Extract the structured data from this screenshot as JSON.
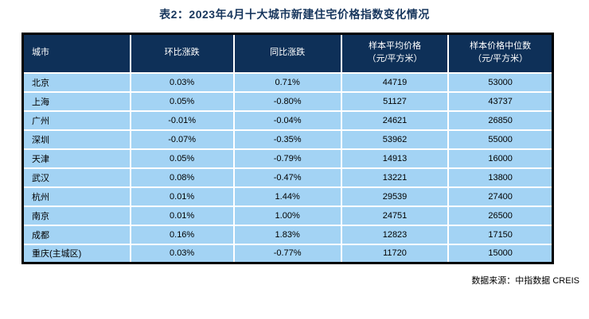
{
  "title": "表2：2023年4月十大城市新建住宅价格指数变化情况",
  "source": "数据来源：中指数据 CREIS",
  "colors": {
    "header_bg": "#0e3058",
    "row_bg": "#a3d3f4",
    "title_color": "#17365d",
    "grid_line": "#ffffff",
    "outer_border": "#000000",
    "body_text": "#000000"
  },
  "table": {
    "columns": [
      {
        "label": "城市",
        "unit": ""
      },
      {
        "label": "环比涨跌",
        "unit": ""
      },
      {
        "label": "同比涨跌",
        "unit": ""
      },
      {
        "label": "样本平均价格",
        "unit": "（元/平方米）"
      },
      {
        "label": "样本价格中位数",
        "unit": "（元/平方米）"
      }
    ],
    "rows": [
      {
        "city": "北京",
        "mom": "0.03%",
        "yoy": "0.71%",
        "avg_price": "44719",
        "median_price": "53000"
      },
      {
        "city": "上海",
        "mom": "0.05%",
        "yoy": "-0.80%",
        "avg_price": "51127",
        "median_price": "43737"
      },
      {
        "city": "广州",
        "mom": "-0.01%",
        "yoy": "-0.04%",
        "avg_price": "24621",
        "median_price": "26850"
      },
      {
        "city": "深圳",
        "mom": "-0.07%",
        "yoy": "-0.35%",
        "avg_price": "53962",
        "median_price": "55000"
      },
      {
        "city": "天津",
        "mom": "0.05%",
        "yoy": "-0.79%",
        "avg_price": "14913",
        "median_price": "16000"
      },
      {
        "city": "武汉",
        "mom": "0.08%",
        "yoy": "-0.47%",
        "avg_price": "13221",
        "median_price": "13800"
      },
      {
        "city": "杭州",
        "mom": "0.01%",
        "yoy": "1.44%",
        "avg_price": "29539",
        "median_price": "27400"
      },
      {
        "city": "南京",
        "mom": "0.01%",
        "yoy": "1.00%",
        "avg_price": "24751",
        "median_price": "26500"
      },
      {
        "city": "成都",
        "mom": "0.16%",
        "yoy": "1.83%",
        "avg_price": "12823",
        "median_price": "17150"
      },
      {
        "city": "重庆(主城区)",
        "mom": "0.03%",
        "yoy": "-0.77%",
        "avg_price": "11720",
        "median_price": "15000"
      }
    ]
  }
}
